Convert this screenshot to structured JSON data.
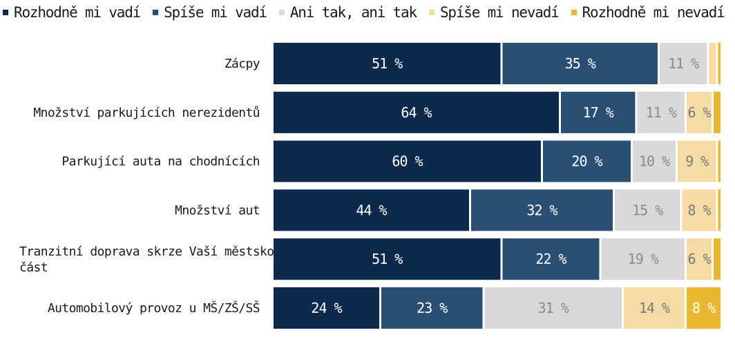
{
  "chart_data": {
    "type": "bar",
    "orientation": "horizontal",
    "stacked": true,
    "legend_position": "top",
    "title": "",
    "xlabel": "",
    "ylabel": "",
    "categories": [
      [
        "Zácpy"
      ],
      [
        "Množství parkujících nerezidentů"
      ],
      [
        "Parkující auta na chodnících"
      ],
      [
        "Množství aut"
      ],
      [
        "Tranzitní doprava skrze Vaší městskou",
        "část"
      ],
      [
        "Automobilový provoz u MŠ/ZŠ/SŠ"
      ]
    ],
    "series": [
      {
        "name": "Rozhodně mi vadí",
        "color": "#0d2a4c",
        "label_color": "#ffffff",
        "values": [
          51,
          64,
          60,
          44,
          51,
          24
        ],
        "labels": [
          "51 %",
          "64 %",
          "60 %",
          "44 %",
          "51 %",
          "24 %"
        ]
      },
      {
        "name": "Spíše mi vadí",
        "color": "#2b4f73",
        "label_color": "#ffffff",
        "values": [
          35,
          17,
          20,
          32,
          22,
          23
        ],
        "labels": [
          "35 %",
          "17 %",
          "20 %",
          "32 %",
          "22 %",
          "23 %"
        ]
      },
      {
        "name": "Ani tak, ani tak",
        "color": "#d9d9d9",
        "label_color": "#8a8a8a",
        "values": [
          11,
          11,
          10,
          15,
          19,
          31
        ],
        "labels": [
          "11 %",
          "11 %",
          "10 %",
          "15 %",
          "19 %",
          "31 %"
        ]
      },
      {
        "name": "Spíše mi nevadí",
        "color": "#f5dca6",
        "label_color": "#7a7a7a",
        "values": [
          2,
          6,
          9,
          8,
          6,
          14
        ],
        "labels": [
          "",
          "6 %",
          "9 %",
          "8 %",
          "6 %",
          "14 %"
        ]
      },
      {
        "name": "Rozhodně mi nevadí",
        "color": "#e8b830",
        "label_color": "#ffffff",
        "values": [
          1,
          2,
          1,
          1,
          2,
          8
        ],
        "labels": [
          "",
          "",
          "",
          "",
          "",
          "8 %"
        ]
      }
    ]
  }
}
